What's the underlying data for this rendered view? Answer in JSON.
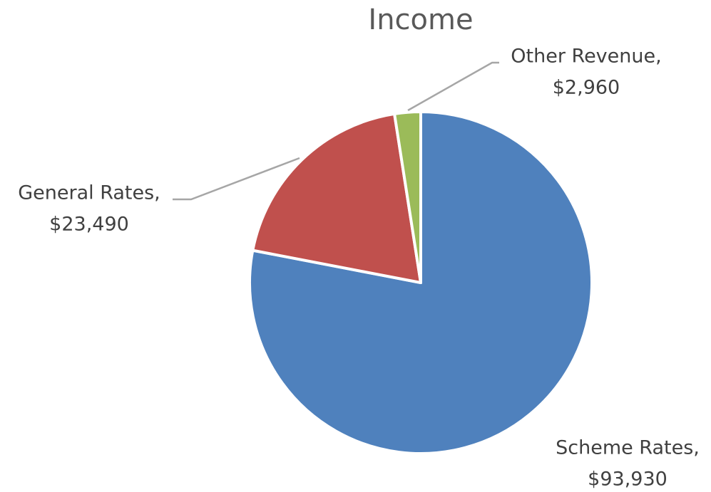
{
  "chart_data": {
    "type": "pie",
    "title": "Income",
    "categories": [
      "Scheme Rates,",
      "General Rates,",
      "Other Revenue,"
    ],
    "values": [
      93930,
      23490,
      2960
    ],
    "value_labels": [
      "$93,930",
      "$23,490",
      "$2,960"
    ],
    "colors": [
      "#4f81bd",
      "#c0504d",
      "#9bbb59"
    ]
  }
}
